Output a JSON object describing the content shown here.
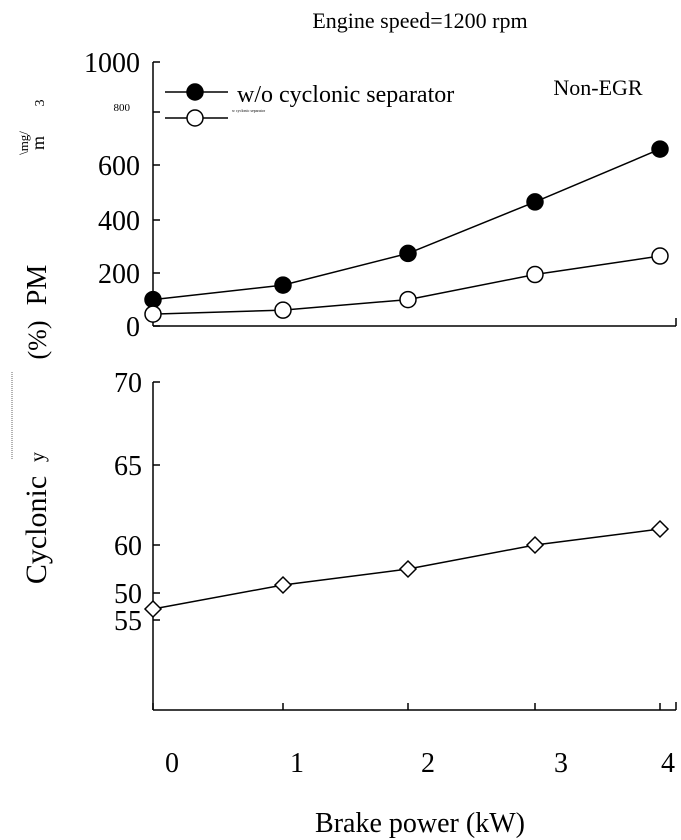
{
  "title": "Engine speed=1200 rpm",
  "annotation": "Non-EGR",
  "xlabel": "Brake power  (kW)",
  "chart_data": [
    {
      "type": "line",
      "ylabel_main": "PM",
      "ylabel_unit_fragment_1": "\\mg/",
      "ylabel_unit_fragment_2": "m",
      "ylabel_unit_fragment_3": "3",
      "ylim": [
        0,
        1000
      ],
      "yticks": [
        "0",
        "200",
        "400",
        "600",
        "800",
        "1000"
      ],
      "xlim": [
        0,
        4
      ],
      "x": [
        0,
        1,
        2,
        3,
        4
      ],
      "series": [
        {
          "name": "w/o cyclonic separator",
          "marker": "filled-circle",
          "values": [
            100,
            155,
            275,
            470,
            670
          ]
        },
        {
          "name": "w cyclonic separator",
          "marker": "open-circle",
          "values": [
            45,
            60,
            100,
            195,
            265
          ]
        }
      ]
    },
    {
      "type": "line",
      "ylabel_main": "Cyclonic",
      "ylabel_fragment": "y",
      "ylabel_unit": "(%)",
      "yticks": [
        "50",
        "55",
        "60",
        "65",
        "70"
      ],
      "xticks": [
        "0",
        "1",
        "2",
        "3",
        "4"
      ],
      "x": [
        0,
        1,
        2,
        3,
        4
      ],
      "series": [
        {
          "marker": "open-diamond",
          "values": [
            56.0,
            57.5,
            58.5,
            60.0,
            61.0
          ]
        }
      ]
    }
  ],
  "colors": {
    "line": "#000000",
    "background": "#ffffff"
  }
}
